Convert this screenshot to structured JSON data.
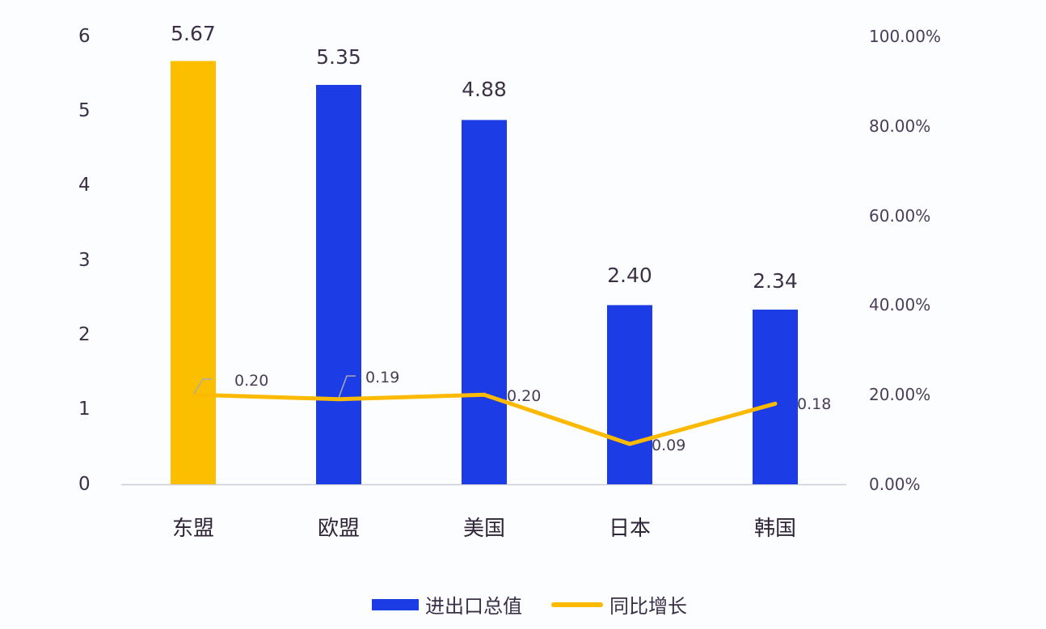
{
  "chart_data": {
    "type": "bar",
    "combo": "bar+line (dual axis)",
    "categories": [
      "东盟",
      "欧盟",
      "美国",
      "日本",
      "韩国"
    ],
    "series": [
      {
        "name": "进出口总值",
        "type": "bar",
        "axis": "left",
        "values": [
          5.67,
          5.35,
          4.88,
          2.4,
          2.34
        ],
        "colors": [
          "#fbbf00",
          "#1c3de6",
          "#1c3de6",
          "#1c3de6",
          "#1c3de6"
        ]
      },
      {
        "name": "同比增长",
        "type": "line",
        "axis": "right",
        "values": [
          0.2,
          0.19,
          0.2,
          0.09,
          0.18
        ],
        "color": "#fbb900"
      }
    ],
    "bar_labels": [
      "5.67",
      "5.35",
      "4.88",
      "2.40",
      "2.34"
    ],
    "line_labels": [
      "0.20",
      "0.19",
      "0.20",
      "0.09",
      "0.18"
    ],
    "left_axis": {
      "ticks": [
        "0",
        "1",
        "2",
        "3",
        "4",
        "5",
        "6"
      ],
      "range": [
        0,
        6
      ]
    },
    "right_axis": {
      "ticks": [
        "0.00%",
        "20.00%",
        "40.00%",
        "60.00%",
        "80.00%",
        "100.00%"
      ],
      "range": [
        0,
        1
      ]
    },
    "title": "",
    "xlabel": "",
    "ylabel": "",
    "grid": false,
    "legend_position": "bottom"
  },
  "legend": {
    "bar_label": "进出口总值",
    "line_label": "同比增长"
  },
  "colors": {
    "bar_highlight": "#fbbf00",
    "bar_default": "#1c3de6",
    "line": "#fbb900",
    "axis_line": "#c9cdd6",
    "text": "#3a2f47"
  }
}
